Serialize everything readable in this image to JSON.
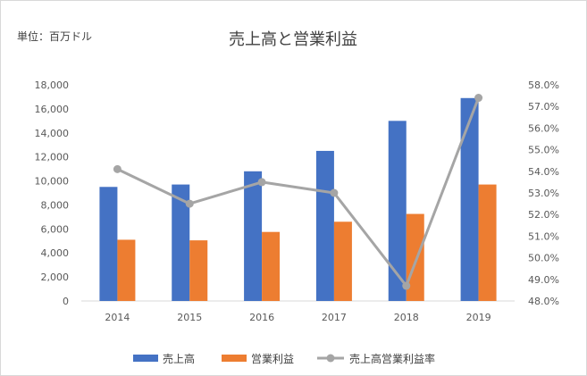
{
  "chart_data": {
    "type": "bar",
    "title": "売上高と営業利益",
    "unit_label": "単位：百万ドル",
    "categories": [
      "2014",
      "2015",
      "2016",
      "2017",
      "2018",
      "2019"
    ],
    "series": [
      {
        "name": "売上高",
        "type": "bar",
        "axis": "left",
        "color": "#4472C4",
        "values": [
          9500,
          9700,
          10800,
          12500,
          15000,
          16900
        ]
      },
      {
        "name": "営業利益",
        "type": "bar",
        "axis": "left",
        "color": "#ED7D31",
        "values": [
          5100,
          5050,
          5750,
          6600,
          7250,
          9700
        ]
      },
      {
        "name": "売上高営業利益率",
        "type": "line",
        "axis": "right",
        "color": "#A5A5A5",
        "values": [
          54.1,
          52.5,
          53.5,
          53.0,
          48.7,
          57.4
        ]
      }
    ],
    "y_left": {
      "min": 0,
      "max": 18000,
      "step": 2000,
      "ticks": [
        "0",
        "2,000",
        "4,000",
        "6,000",
        "8,000",
        "10,000",
        "12,000",
        "14,000",
        "16,000",
        "18,000"
      ]
    },
    "y_right": {
      "min": 48,
      "max": 58,
      "step": 1,
      "ticks": [
        "48.0%",
        "49.0%",
        "50.0%",
        "51.0%",
        "52.0%",
        "53.0%",
        "54.0%",
        "55.0%",
        "56.0%",
        "57.0%",
        "58.0%"
      ]
    },
    "grid": false,
    "legend_position": "bottom"
  }
}
